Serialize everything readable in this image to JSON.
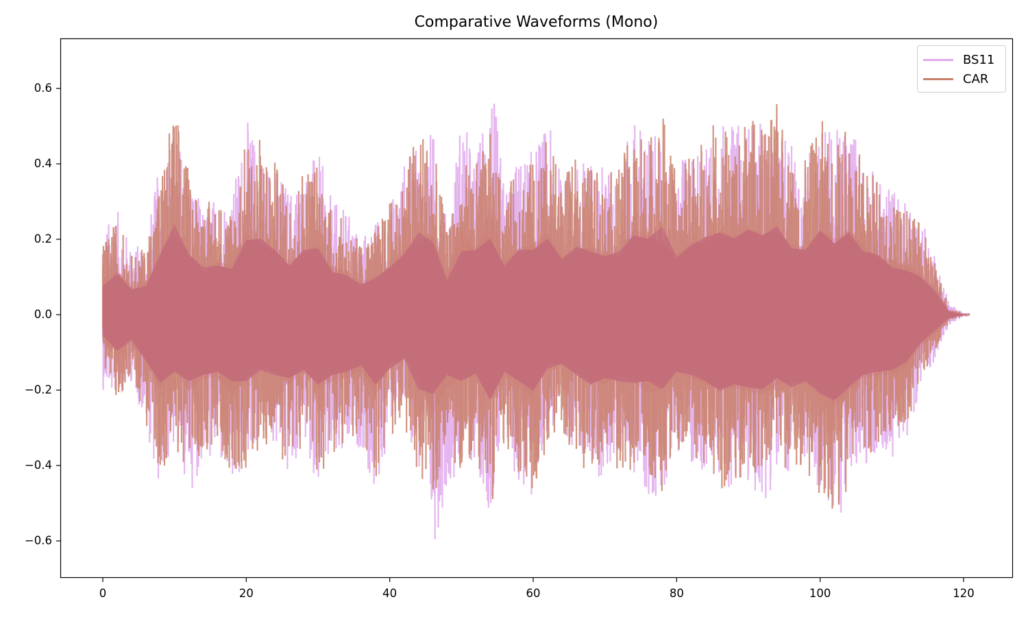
{
  "chart_data": {
    "type": "line",
    "title": "Comparative Waveforms (Mono)",
    "xlabel": "",
    "ylabel": "",
    "xlim": [
      -5.9,
      126.6
    ],
    "ylim": [
      -0.7,
      0.73
    ],
    "xticks": [
      0,
      20,
      40,
      60,
      80,
      100,
      120
    ],
    "xtick_labels": [
      "0",
      "20",
      "40",
      "60",
      "80",
      "100",
      "120"
    ],
    "yticks": [
      0.6,
      0.4,
      0.2,
      0.0,
      -0.2,
      -0.4,
      -0.6
    ],
    "ytick_labels": [
      "0.6",
      "0.4",
      "0.2",
      "0.0",
      "−0.2",
      "−0.4",
      "−0.6"
    ],
    "grid": false,
    "legend_position": "upper right",
    "duration_seconds": 120.8,
    "series": [
      {
        "name": "BS11",
        "color": "#e0a8ec",
        "alpha": 0.9,
        "envelope_step_seconds": 2,
        "max_envelope": [
          0.23,
          0.28,
          0.18,
          0.2,
          0.41,
          0.5,
          0.4,
          0.27,
          0.33,
          0.32,
          0.52,
          0.45,
          0.4,
          0.34,
          0.38,
          0.44,
          0.3,
          0.28,
          0.21,
          0.25,
          0.29,
          0.41,
          0.45,
          0.5,
          0.24,
          0.55,
          0.4,
          0.67,
          0.34,
          0.42,
          0.44,
          0.52,
          0.37,
          0.4,
          0.43,
          0.4,
          0.36,
          0.54,
          0.5,
          0.45,
          0.38,
          0.46,
          0.45,
          0.53,
          0.5,
          0.53,
          0.51,
          0.52,
          0.45,
          0.42,
          0.54,
          0.48,
          0.54,
          0.44,
          0.36,
          0.35,
          0.3,
          0.26,
          0.17,
          0.03,
          0.005
        ],
        "min_envelope": [
          -0.2,
          -0.22,
          -0.18,
          -0.3,
          -0.47,
          -0.35,
          -0.48,
          -0.4,
          -0.39,
          -0.51,
          -0.39,
          -0.33,
          -0.36,
          -0.45,
          -0.34,
          -0.46,
          -0.42,
          -0.4,
          -0.35,
          -0.52,
          -0.3,
          -0.26,
          -0.42,
          -0.63,
          -0.46,
          -0.4,
          -0.4,
          -0.53,
          -0.37,
          -0.46,
          -0.52,
          -0.3,
          -0.32,
          -0.36,
          -0.42,
          -0.44,
          -0.38,
          -0.42,
          -0.5,
          -0.47,
          -0.36,
          -0.4,
          -0.44,
          -0.46,
          -0.46,
          -0.48,
          -0.5,
          -0.44,
          -0.42,
          -0.44,
          -0.47,
          -0.58,
          -0.48,
          -0.4,
          -0.38,
          -0.38,
          -0.33,
          -0.2,
          -0.12,
          -0.03,
          -0.005
        ]
      },
      {
        "name": "CAR",
        "color": "#c9806a",
        "alpha": 0.9,
        "envelope_step_seconds": 2,
        "max_envelope": [
          0.18,
          0.26,
          0.16,
          0.18,
          0.38,
          0.57,
          0.38,
          0.3,
          0.31,
          0.29,
          0.47,
          0.48,
          0.41,
          0.31,
          0.41,
          0.42,
          0.27,
          0.25,
          0.19,
          0.23,
          0.3,
          0.38,
          0.52,
          0.46,
          0.22,
          0.4,
          0.41,
          0.48,
          0.31,
          0.41,
          0.41,
          0.48,
          0.35,
          0.43,
          0.4,
          0.37,
          0.4,
          0.5,
          0.48,
          0.56,
          0.36,
          0.44,
          0.49,
          0.52,
          0.48,
          0.54,
          0.5,
          0.56,
          0.42,
          0.41,
          0.53,
          0.45,
          0.52,
          0.4,
          0.38,
          0.3,
          0.28,
          0.24,
          0.15,
          0.02,
          0.003
        ],
        "min_envelope": [
          -0.13,
          -0.23,
          -0.16,
          -0.29,
          -0.43,
          -0.36,
          -0.42,
          -0.38,
          -0.36,
          -0.42,
          -0.42,
          -0.35,
          -0.38,
          -0.4,
          -0.35,
          -0.44,
          -0.38,
          -0.36,
          -0.32,
          -0.44,
          -0.34,
          -0.28,
          -0.47,
          -0.5,
          -0.38,
          -0.42,
          -0.37,
          -0.54,
          -0.36,
          -0.42,
          -0.48,
          -0.34,
          -0.31,
          -0.38,
          -0.44,
          -0.4,
          -0.42,
          -0.43,
          -0.42,
          -0.47,
          -0.36,
          -0.38,
          -0.42,
          -0.48,
          -0.44,
          -0.46,
          -0.47,
          -0.4,
          -0.46,
          -0.42,
          -0.5,
          -0.54,
          -0.46,
          -0.38,
          -0.36,
          -0.35,
          -0.3,
          -0.18,
          -0.1,
          -0.02,
          -0.003
        ]
      }
    ]
  },
  "legend": {
    "items": [
      {
        "label": "BS11",
        "color": "#e0a8ec"
      },
      {
        "label": "CAR",
        "color": "#c9806a"
      }
    ]
  }
}
